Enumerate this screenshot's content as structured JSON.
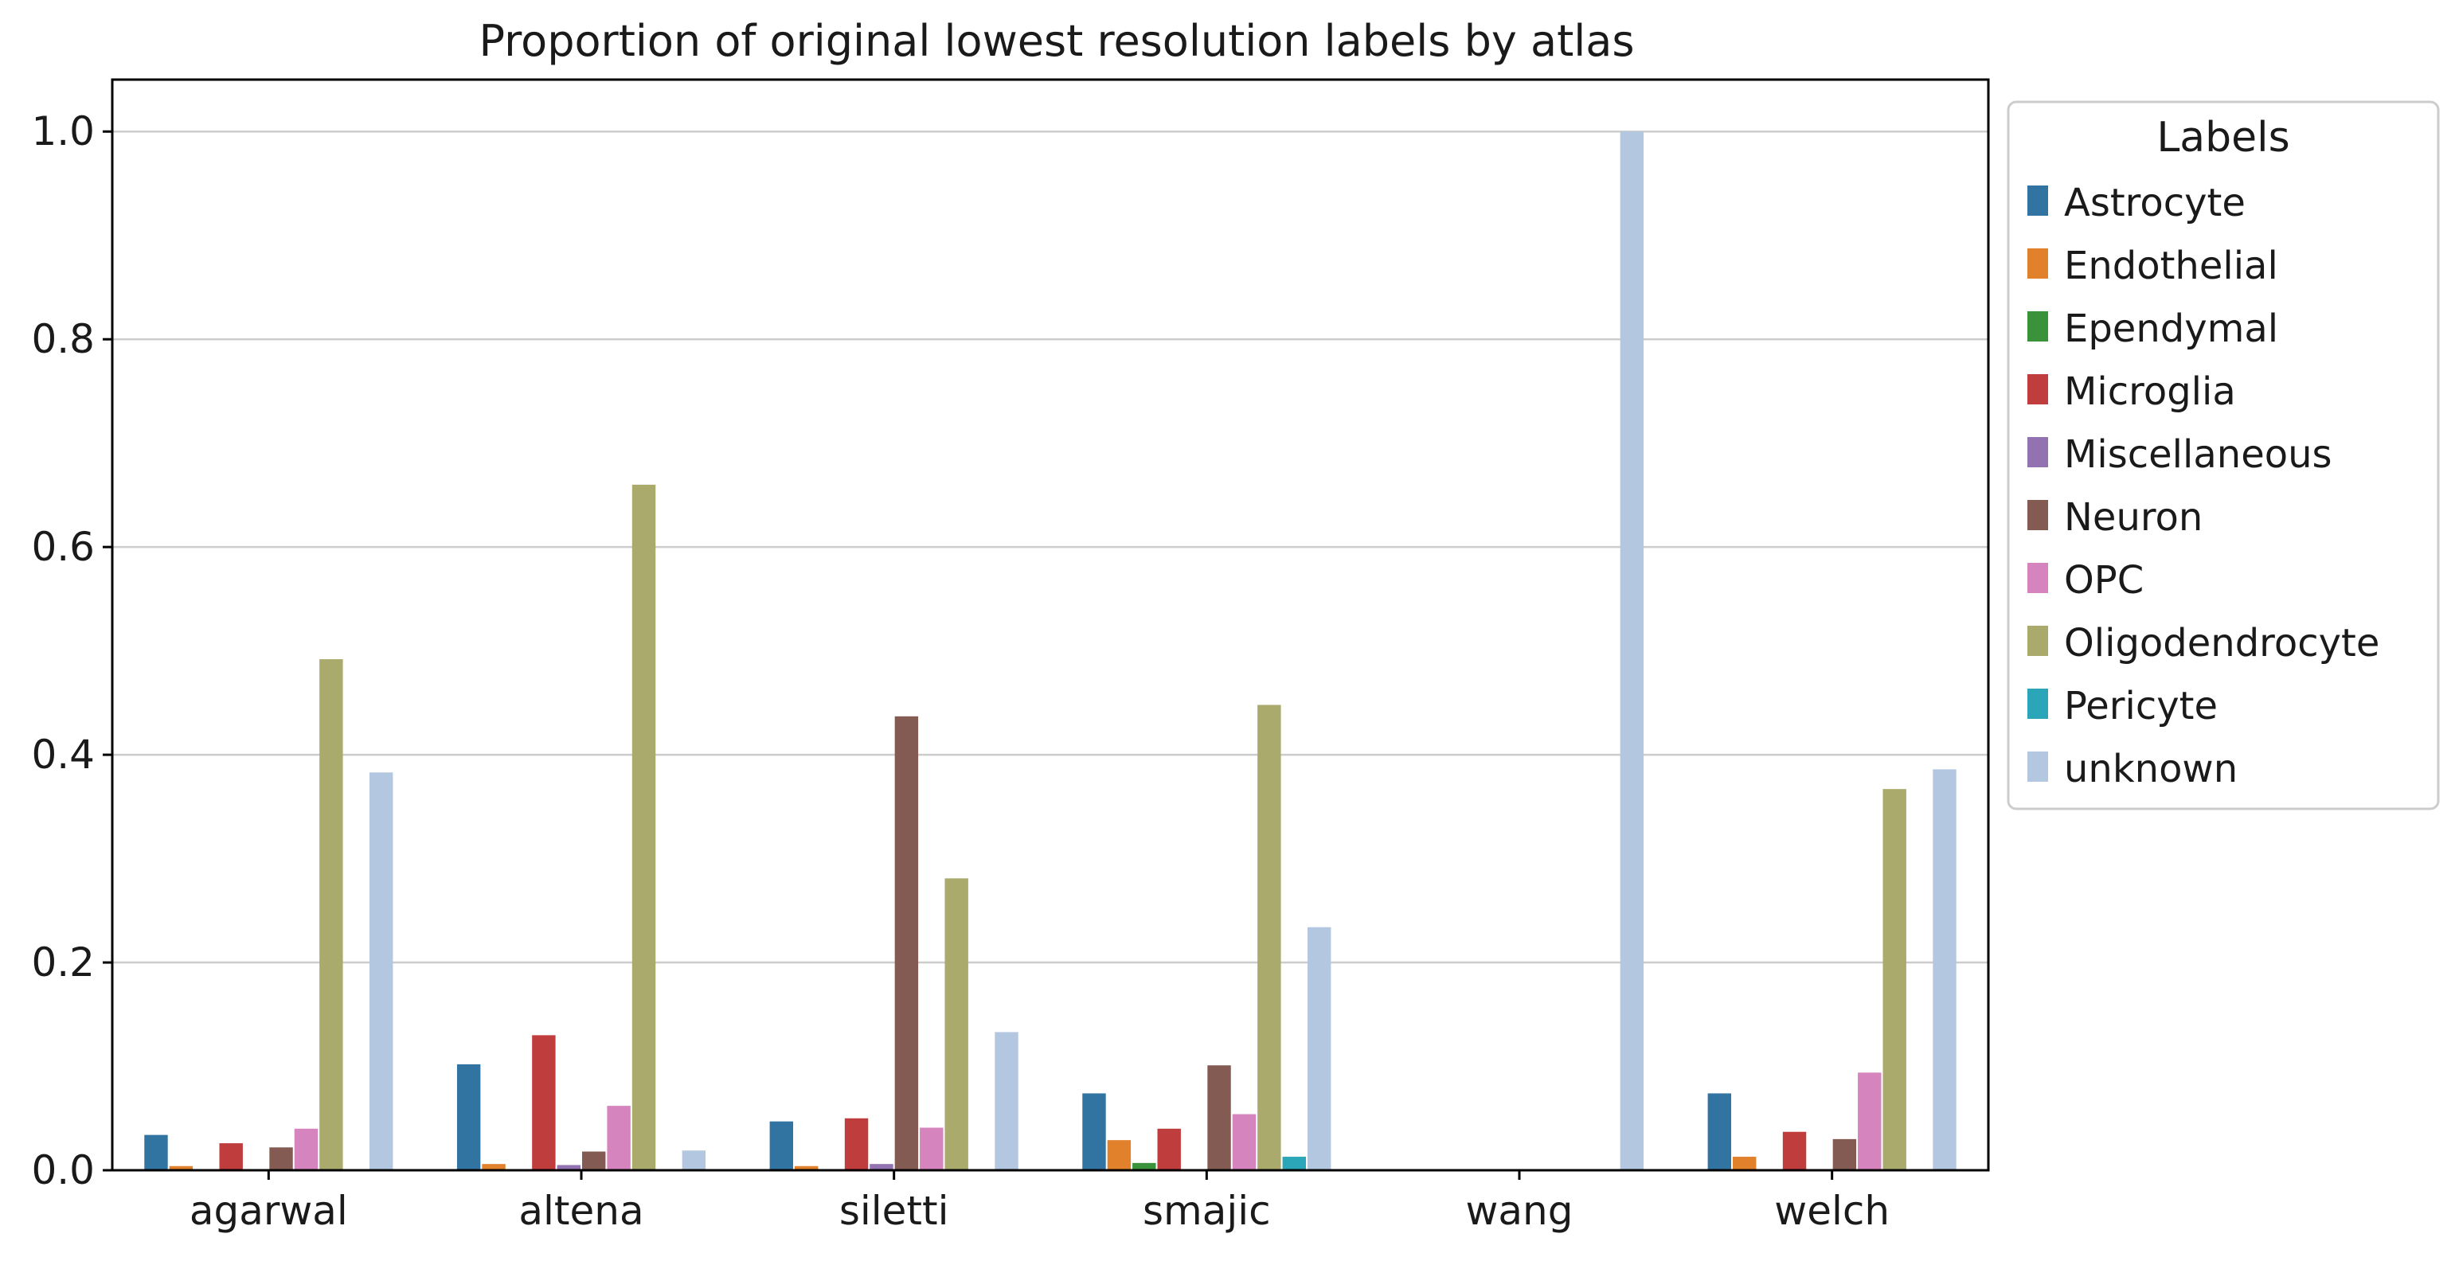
{
  "chart_data": {
    "type": "bar",
    "title": "Proportion of original lowest resolution labels by atlas",
    "xlabel": "",
    "ylabel": "",
    "ylim": [
      0,
      1.05
    ],
    "yticks": [
      "0.0",
      "0.2",
      "0.4",
      "0.6",
      "0.8",
      "1.0"
    ],
    "grid": "horizontal",
    "categories": [
      "agarwal",
      "altena",
      "siletti",
      "smajic",
      "wang",
      "welch"
    ],
    "legend": {
      "title": "Labels",
      "placement": "outside-right"
    },
    "series": [
      {
        "name": "Astrocyte",
        "color": "#3274a1",
        "values": [
          0.034,
          0.102,
          0.047,
          0.074,
          0,
          0.074
        ]
      },
      {
        "name": "Endothelial",
        "color": "#e1812c",
        "values": [
          0.004,
          0.006,
          0.004,
          0.029,
          0,
          0.013
        ]
      },
      {
        "name": "Ependymal",
        "color": "#3a923a",
        "values": [
          0,
          0,
          0,
          0.007,
          0,
          0
        ]
      },
      {
        "name": "Microglia",
        "color": "#c03d3e",
        "values": [
          0.026,
          0.13,
          0.05,
          0.04,
          0,
          0.037
        ]
      },
      {
        "name": "Miscellaneous",
        "color": "#9372b2",
        "values": [
          0,
          0.005,
          0.006,
          0,
          0,
          0
        ]
      },
      {
        "name": "Neuron",
        "color": "#845b53",
        "values": [
          0.022,
          0.018,
          0.437,
          0.101,
          0,
          0.03
        ]
      },
      {
        "name": "OPC",
        "color": "#d684bd",
        "values": [
          0.04,
          0.062,
          0.041,
          0.054,
          0,
          0.094
        ]
      },
      {
        "name": "Oligodendrocyte",
        "color": "#a9aa6b",
        "values": [
          0.492,
          0.66,
          0.281,
          0.448,
          0,
          0.367
        ]
      },
      {
        "name": "Pericyte",
        "color": "#2ba6b8",
        "values": [
          0,
          0,
          0,
          0.013,
          0,
          0
        ]
      },
      {
        "name": "unknown",
        "color": "#b4c7e0",
        "values": [
          0.383,
          0.019,
          0.133,
          0.234,
          1.0,
          0.386
        ]
      }
    ]
  }
}
